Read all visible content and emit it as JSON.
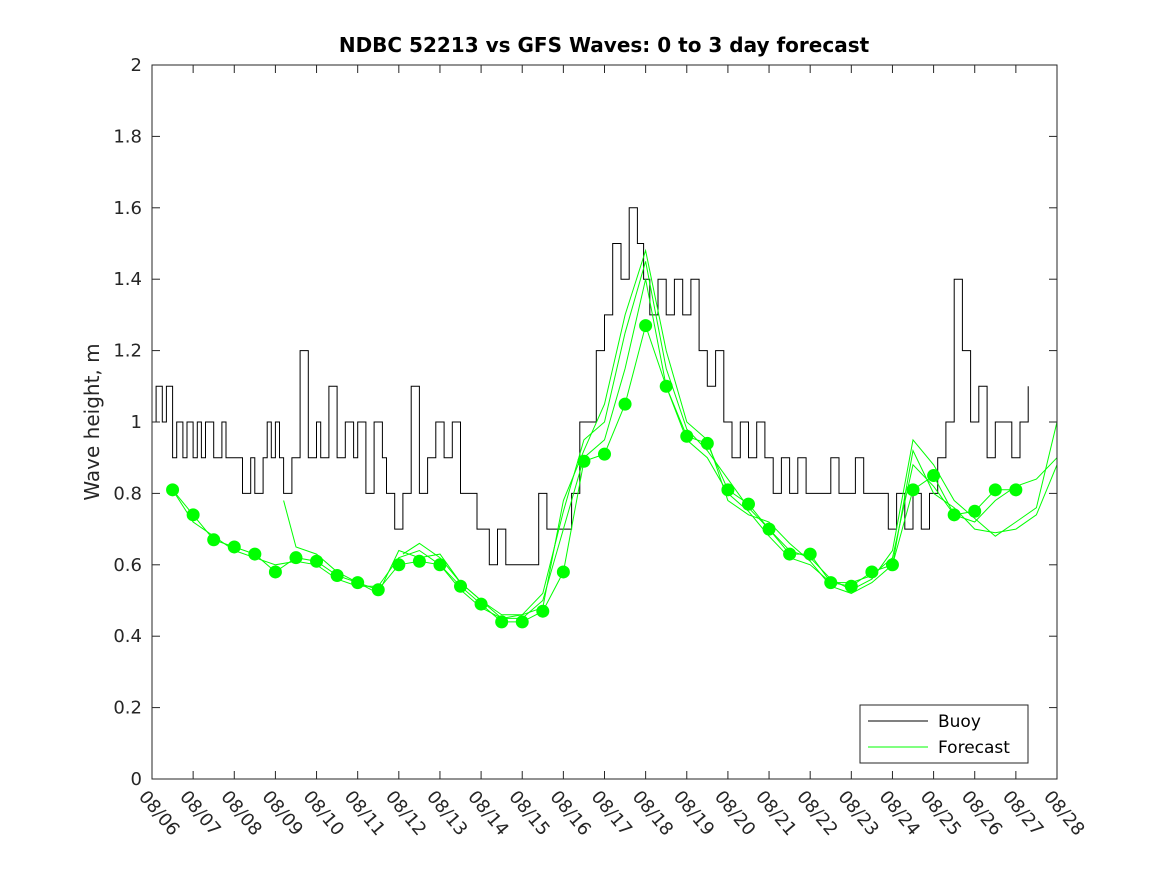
{
  "chart_data": {
    "type": "line",
    "title": "NDBC 52213 vs GFS Waves: 0 to 3 day forecast",
    "xlabel": "",
    "ylabel": "Wave height, m",
    "xlim": [
      0,
      22
    ],
    "ylim": [
      0,
      2
    ],
    "yticks": [
      0,
      0.2,
      0.4,
      0.6,
      0.8,
      1,
      1.2,
      1.4,
      1.6,
      1.8,
      2
    ],
    "ytick_labels": [
      "0",
      "0.2",
      "0.4",
      "0.6",
      "0.8",
      "1",
      "1.2",
      "1.4",
      "1.6",
      "1.8",
      "2"
    ],
    "xtick_labels": [
      "08/06",
      "08/07",
      "08/08",
      "08/09",
      "08/10",
      "08/11",
      "08/12",
      "08/13",
      "08/14",
      "08/15",
      "08/16",
      "08/17",
      "08/18",
      "08/19",
      "08/20",
      "08/21",
      "08/22",
      "08/23",
      "08/24",
      "08/25",
      "08/26",
      "08/27",
      "08/28"
    ],
    "legend": {
      "position": "bottom-right",
      "entries": [
        "Buoy",
        "Forecast"
      ]
    },
    "colors": {
      "buoy": "#000000",
      "forecast": "#00ff00",
      "axes": "#262626"
    },
    "series": [
      {
        "name": "Buoy",
        "style": "step",
        "x": [
          0,
          0.1,
          0.25,
          0.35,
          0.5,
          0.6,
          0.75,
          0.85,
          1,
          1.1,
          1.2,
          1.3,
          1.5,
          1.7,
          1.8,
          2,
          2.2,
          2.4,
          2.5,
          2.7,
          2.8,
          2.9,
          3.0,
          3.1,
          3.2,
          3.4,
          3.5,
          3.6,
          3.8,
          4.0,
          4.1,
          4.3,
          4.5,
          4.7,
          4.9,
          5.0,
          5.2,
          5.4,
          5.6,
          5.7,
          5.9,
          6.1,
          6.3,
          6.5,
          6.7,
          6.9,
          7.1,
          7.3,
          7.5,
          7.7,
          7.9,
          8.0,
          8.2,
          8.4,
          8.6,
          8.8,
          9.0,
          9.2,
          9.4,
          9.6,
          9.8,
          10.0,
          10.2,
          10.4,
          10.6,
          10.8,
          11.0,
          11.2,
          11.4,
          11.6,
          11.8,
          11.95,
          12.1,
          12.3,
          12.5,
          12.7,
          12.9,
          13.1,
          13.3,
          13.5,
          13.7,
          13.9,
          14.1,
          14.3,
          14.5,
          14.7,
          14.9,
          15.1,
          15.3,
          15.5,
          15.7,
          15.9,
          16.1,
          16.3,
          16.5,
          16.7,
          16.9,
          17.1,
          17.3,
          17.5,
          17.7,
          17.9,
          18.1,
          18.3,
          18.5,
          18.7,
          18.9,
          19.1,
          19.3,
          19.5,
          19.7,
          19.9,
          20.1,
          20.3,
          20.5,
          20.7,
          20.9,
          21.1,
          21.3
        ],
        "values": [
          1.0,
          1.1,
          1.0,
          1.1,
          0.9,
          1.0,
          0.9,
          1.0,
          0.9,
          1.0,
          0.9,
          1.0,
          0.9,
          1.0,
          0.9,
          0.9,
          0.8,
          0.9,
          0.8,
          0.9,
          1.0,
          0.9,
          1.0,
          0.9,
          0.8,
          0.9,
          0.9,
          1.2,
          0.9,
          1.0,
          0.9,
          1.1,
          0.9,
          1.0,
          0.9,
          1.0,
          0.8,
          1.0,
          0.9,
          0.8,
          0.7,
          0.8,
          1.1,
          0.8,
          0.9,
          1.0,
          0.9,
          1.0,
          0.8,
          0.8,
          0.7,
          0.7,
          0.6,
          0.7,
          0.6,
          0.6,
          0.6,
          0.6,
          0.8,
          0.7,
          0.7,
          0.7,
          0.8,
          1.0,
          1.0,
          1.2,
          1.3,
          1.5,
          1.4,
          1.6,
          1.5,
          1.4,
          1.3,
          1.4,
          1.3,
          1.4,
          1.3,
          1.4,
          1.2,
          1.1,
          1.2,
          1.0,
          0.9,
          1.0,
          0.9,
          1.0,
          0.9,
          0.8,
          0.9,
          0.8,
          0.9,
          0.8,
          0.8,
          0.8,
          0.9,
          0.8,
          0.8,
          0.9,
          0.8,
          0.8,
          0.8,
          0.7,
          0.8,
          0.7,
          0.8,
          0.7,
          0.8,
          0.9,
          1.0,
          1.4,
          1.2,
          1.0,
          1.1,
          0.9,
          1.0,
          1.0,
          0.9,
          1.0,
          1.1
        ],
        "color": "#000000"
      },
      {
        "name": "Forecast",
        "style": "markers",
        "x": [
          0.5,
          1,
          1.5,
          2,
          2.5,
          3,
          3.5,
          4,
          4.5,
          5,
          5.5,
          6,
          6.5,
          7,
          7.5,
          8,
          8.5,
          9,
          9.5,
          10,
          10.5,
          11,
          11.5,
          12,
          12.5,
          13,
          13.5,
          14,
          14.5,
          15,
          15.5,
          16,
          16.5,
          17,
          17.5,
          18,
          18.5,
          19,
          19.5,
          20,
          20.5,
          21
        ],
        "values": [
          0.81,
          0.74,
          0.67,
          0.65,
          0.63,
          0.58,
          0.62,
          0.61,
          0.57,
          0.55,
          0.53,
          0.6,
          0.61,
          0.6,
          0.54,
          0.49,
          0.44,
          0.44,
          0.47,
          0.58,
          0.89,
          0.91,
          1.05,
          1.27,
          1.1,
          0.96,
          0.94,
          0.81,
          0.77,
          0.7,
          0.63,
          0.63,
          0.55,
          0.54,
          0.58,
          0.6,
          0.81,
          0.85,
          0.74,
          0.75,
          0.81,
          0.81
        ],
        "color": "#00ff00"
      },
      {
        "name": "Forecast run 1",
        "style": "thin-line",
        "x": [
          0.5,
          1,
          1.5,
          2,
          2.5,
          3,
          3.5,
          4,
          4.5,
          5,
          5.5,
          6,
          6.5,
          7,
          7.5,
          8,
          8.5,
          9,
          9.5,
          10,
          10.5,
          11,
          11.5,
          12,
          12.5,
          13,
          13.5,
          14,
          14.5,
          15,
          15.5,
          16,
          16.5,
          17,
          17.5,
          18,
          18.5,
          19,
          19.5,
          20,
          20.5,
          21,
          21.5,
          22
        ],
        "values": [
          0.81,
          0.72,
          0.68,
          0.64,
          0.62,
          0.6,
          0.61,
          0.6,
          0.56,
          0.54,
          0.54,
          0.62,
          0.64,
          0.6,
          0.53,
          0.48,
          0.45,
          0.45,
          0.5,
          0.7,
          0.9,
          0.95,
          1.15,
          1.4,
          1.1,
          0.95,
          0.9,
          0.8,
          0.75,
          0.68,
          0.62,
          0.6,
          0.55,
          0.55,
          0.57,
          0.62,
          0.88,
          0.82,
          0.74,
          0.72,
          0.78,
          0.82,
          0.84,
          0.9
        ],
        "color": "#00ff00"
      },
      {
        "name": "Forecast run 2",
        "style": "thin-line",
        "x": [
          3.2,
          3.5,
          4,
          4.5,
          5,
          5.5,
          6,
          6.5,
          7,
          7.5,
          8,
          8.5,
          9,
          9.5,
          10,
          10.5,
          11,
          11.5,
          12,
          12.5,
          13,
          13.5,
          14,
          14.5,
          15,
          15.5,
          16,
          16.5,
          17,
          17.5,
          18,
          18.5,
          19,
          19.5,
          20,
          20.5,
          21,
          21.5,
          22
        ],
        "values": [
          0.78,
          0.65,
          0.63,
          0.58,
          0.55,
          0.52,
          0.64,
          0.62,
          0.63,
          0.55,
          0.5,
          0.46,
          0.46,
          0.52,
          0.75,
          0.95,
          1.0,
          1.25,
          1.45,
          1.15,
          0.98,
          0.92,
          0.84,
          0.76,
          0.7,
          0.64,
          0.62,
          0.56,
          0.53,
          0.56,
          0.64,
          0.95,
          0.88,
          0.78,
          0.73,
          0.68,
          0.72,
          0.76,
          1.0
        ],
        "color": "#00ff00"
      },
      {
        "name": "Forecast run 3",
        "style": "thin-line",
        "x": [
          6.1,
          6.5,
          7,
          7.5,
          8,
          8.5,
          9,
          9.5,
          10,
          10.5,
          11,
          11.5,
          12,
          12.5,
          13,
          13.5,
          14,
          14.5,
          15,
          15.5,
          16,
          16.5,
          17,
          17.5,
          18,
          18.5,
          19,
          19.5,
          20,
          20.5,
          21,
          21.5,
          22
        ],
        "values": [
          0.63,
          0.66,
          0.62,
          0.55,
          0.5,
          0.45,
          0.46,
          0.48,
          0.78,
          0.92,
          1.05,
          1.3,
          1.48,
          1.2,
          1.0,
          0.95,
          0.78,
          0.74,
          0.72,
          0.66,
          0.61,
          0.54,
          0.52,
          0.55,
          0.6,
          0.92,
          0.8,
          0.76,
          0.7,
          0.69,
          0.7,
          0.74,
          0.88
        ],
        "color": "#00ff00"
      }
    ]
  }
}
